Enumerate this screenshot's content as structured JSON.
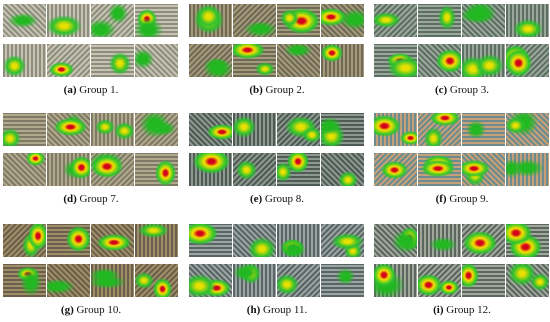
{
  "panels": [
    {
      "label": "(a)",
      "caption": "Group 1."
    },
    {
      "label": "(b)",
      "caption": "Group 2."
    },
    {
      "label": "(c)",
      "caption": "Group 3."
    },
    {
      "label": "(d)",
      "caption": "Group 7."
    },
    {
      "label": "(e)",
      "caption": "Group 8."
    },
    {
      "label": "(f)",
      "caption": "Group 9."
    },
    {
      "label": "(g)",
      "caption": "Group 10."
    },
    {
      "label": "(h)",
      "caption": "Group 11."
    },
    {
      "label": "(i)",
      "caption": "Group 12."
    }
  ]
}
